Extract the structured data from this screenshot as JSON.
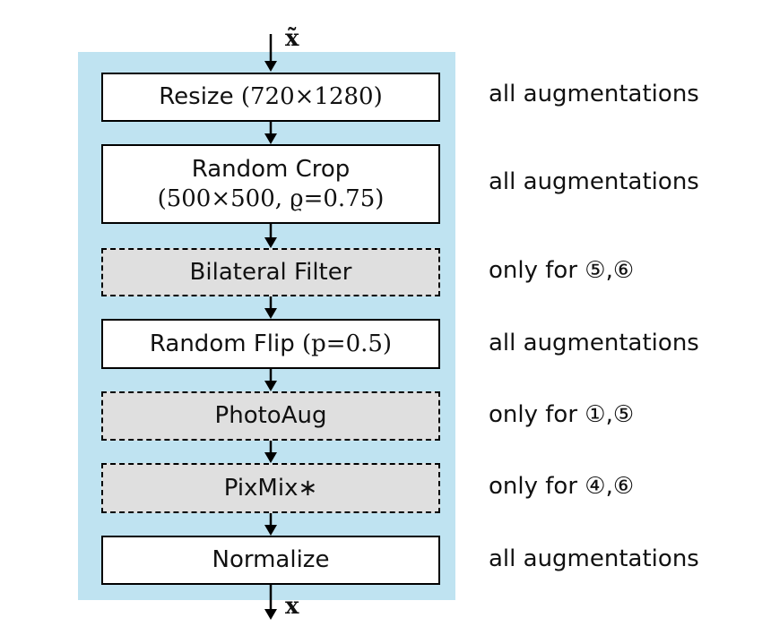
{
  "input_label": "x̃",
  "output_label": "x",
  "steps": [
    {
      "text": "Resize ",
      "math": "(720×1280)",
      "style": "solid",
      "note": "all augmentations"
    },
    {
      "line1": "Random Crop",
      "line2": "(500×500, ϱ=0.75)",
      "style": "solid",
      "note": "all augmentations"
    },
    {
      "text": "Bilateral Filter",
      "style": "dashed",
      "note": "only for ⑤,⑥"
    },
    {
      "text": "Random Flip ",
      "math": "(p=0.5)",
      "style": "solid",
      "note": "all augmentations"
    },
    {
      "text": "PhotoAug",
      "style": "dashed",
      "note": "only for ①,⑤"
    },
    {
      "text": "PixMix∗",
      "style": "dashed",
      "note": "only for ④,⑥"
    },
    {
      "text": "Normalize",
      "style": "solid",
      "note": "all augmentations"
    }
  ]
}
